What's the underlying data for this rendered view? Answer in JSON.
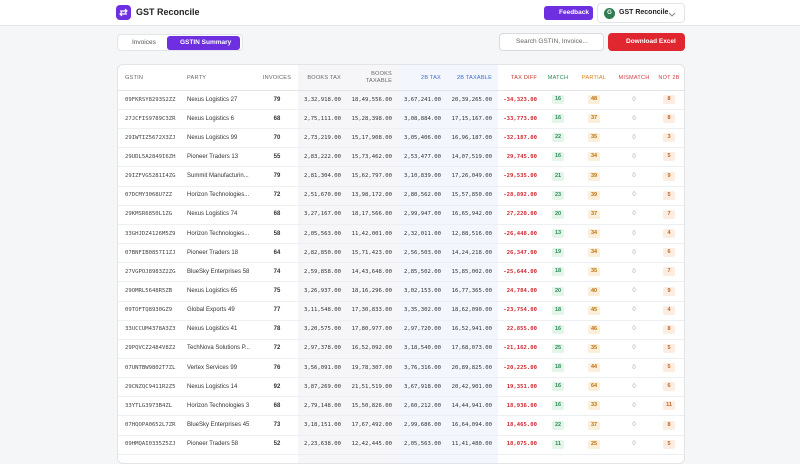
{
  "header": {
    "app_title": "GST Reconcile",
    "feedback": "Feedback",
    "avatar": "G",
    "account": "GST Reconcile"
  },
  "toolbar": {
    "tabs": [
      "Invoices",
      "GSTIN Summary"
    ],
    "search_placeholder": "Search GSTIN, Invoice...",
    "download": "Download Excel"
  },
  "table": {
    "columns": [
      "GSTIN",
      "PARTY",
      "INVOICES",
      "BOOKS TAX",
      "BOOKS TAXABLE",
      "2B TAX",
      "2B TAXABLE",
      "TAX DIFF",
      "MATCH",
      "PARTIAL",
      "MISMATCH",
      "NOT 2B"
    ],
    "rows": [
      [
        "09FKRSY8293S2ZZ",
        "Nexus Logistics 27",
        "79",
        "3,32,918.00",
        "18,49,556.00",
        "3,67,241.00",
        "20,39,265.00",
        "-34,323.00",
        "16",
        "48",
        "0",
        "8"
      ],
      [
        "27JCFIS9789C3ZR",
        "Nexus Logistics 6",
        "68",
        "2,75,111.00",
        "15,28,398.00",
        "3,08,884.00",
        "17,15,167.00",
        "-33,773.00",
        "16",
        "37",
        "0",
        "8"
      ],
      [
        "29IWTIZ5672X3ZJ",
        "Nexus Logistics 99",
        "70",
        "2,73,219.00",
        "15,17,908.00",
        "3,05,406.00",
        "16,96,187.00",
        "-32,187.00",
        "22",
        "35",
        "0",
        "3"
      ],
      [
        "29UDL5A2849I6ZH",
        "Pioneer Traders 13",
        "55",
        "2,83,222.00",
        "15,73,462.00",
        "2,53,477.00",
        "14,07,519.00",
        "29,745.00",
        "16",
        "34",
        "0",
        "5"
      ],
      [
        "29IZFVG5281I4ZG",
        "Summit Manufacturin...",
        "79",
        "2,81,304.00",
        "15,62,797.00",
        "3,10,839.00",
        "17,26,049.00",
        "-29,535.00",
        "21",
        "39",
        "0",
        "9"
      ],
      [
        "07DCMY3068U7ZZ",
        "Horizon Technologies...",
        "72",
        "2,51,670.00",
        "13,98,172.00",
        "2,80,562.00",
        "15,57,850.00",
        "-28,892.00",
        "23",
        "39",
        "0",
        "5"
      ],
      [
        "29KMSR6850L1ZG",
        "Nexus Logistics 74",
        "68",
        "3,27,167.00",
        "18,17,566.00",
        "2,99,947.00",
        "16,65,942.00",
        "27,220.00",
        "20",
        "37",
        "0",
        "7"
      ],
      [
        "33GHJDZ4126M5Z9",
        "Horizon Technologies...",
        "58",
        "2,05,563.00",
        "11,42,001.00",
        "2,32,011.00",
        "12,88,516.00",
        "-26,448.00",
        "13",
        "34",
        "0",
        "4"
      ],
      [
        "07BNFIB0857I1ZJ",
        "Pioneer Traders 18",
        "64",
        "2,82,850.00",
        "15,71,423.00",
        "2,56,503.00",
        "14,24,218.00",
        "26,347.00",
        "19",
        "34",
        "0",
        "6"
      ],
      [
        "27VGPOJ8983Z2ZG",
        "BlueSky Enterprises 58",
        "74",
        "2,59,858.00",
        "14,43,648.00",
        "2,85,502.00",
        "15,85,002.00",
        "-25,644.00",
        "18",
        "35",
        "0",
        "7"
      ],
      [
        "29OMRL5648R5ZB",
        "Nexus Logistics 65",
        "75",
        "3,26,937.00",
        "18,16,296.00",
        "3,02,153.00",
        "16,77,365.00",
        "24,784.00",
        "20",
        "40",
        "0",
        "9"
      ],
      [
        "09TOFTQ8930GZ9",
        "Global Exports 49",
        "77",
        "3,11,548.00",
        "17,30,833.00",
        "3,35,302.00",
        "18,62,090.00",
        "-23,754.00",
        "18",
        "45",
        "0",
        "4"
      ],
      [
        "33UCCUM4378A3Z3",
        "Nexus Logistics 41",
        "78",
        "3,20,575.00",
        "17,80,977.00",
        "2,97,720.00",
        "16,52,941.00",
        "22,855.00",
        "16",
        "46",
        "0",
        "8"
      ],
      [
        "29PQVCZ2484V8Z2",
        "TechNova Solutions P...",
        "72",
        "2,97,378.00",
        "16,52,092.00",
        "3,18,540.00",
        "17,68,073.00",
        "-21,162.00",
        "25",
        "35",
        "0",
        "5"
      ],
      [
        "07UNTBW9802T7ZL",
        "Vertex Services 99",
        "76",
        "3,56,091.00",
        "19,78,307.00",
        "3,76,316.00",
        "20,89,825.00",
        "-20,225.00",
        "18",
        "44",
        "0",
        "5"
      ],
      [
        "29CNZQC9411R2Z5",
        "Nexus Logistics 14",
        "92",
        "3,87,269.00",
        "21,51,519.00",
        "3,67,918.00",
        "20,42,901.00",
        "19,351.00",
        "16",
        "64",
        "0",
        "6"
      ],
      [
        "33YTLG3973B4ZL",
        "Horizon Technologies 3",
        "68",
        "2,79,148.00",
        "15,50,826.00",
        "2,60,212.00",
        "14,44,941.00",
        "18,936.00",
        "16",
        "33",
        "0",
        "11"
      ],
      [
        "07HQOPA0652L7ZR",
        "BlueSky Enterprises 45",
        "73",
        "3,18,151.00",
        "17,67,492.00",
        "2,99,686.00",
        "16,64,094.00",
        "18,465.00",
        "22",
        "37",
        "0",
        "8"
      ],
      [
        "09HMQAI0335Z5ZJ",
        "Pioneer Traders 58",
        "52",
        "2,23,638.00",
        "12,42,445.00",
        "2,05,563.00",
        "11,41,480.00",
        "18,075.00",
        "11",
        "25",
        "0",
        "5"
      ]
    ]
  }
}
